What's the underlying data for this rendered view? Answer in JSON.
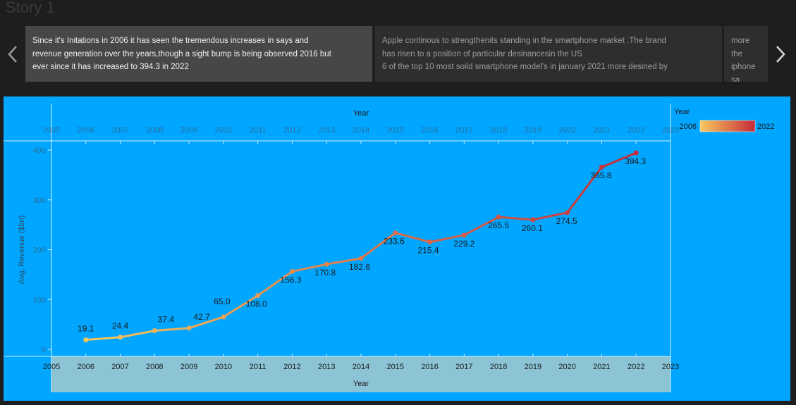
{
  "story": {
    "title": "Story 1"
  },
  "captions": [
    {
      "text": "Since it's Initations in 2006 it has seen the tremendous  increases in says and\nrevenue generation over the years,though a sight bump is being observed 2016 but\never since it has increased to 394.3 in 2022"
    },
    {
      "text": "Apple continous to strengthenits standing in the smartphone market .The brand\nhas risen to a position of particular desinancesin the US\n6 of the top 10 most soild smartphone model's in january 2021 more desined  by"
    },
    {
      "text": "more the\niphone sa\nbut declin"
    }
  ],
  "nav": {
    "prev_icon": "chevron-left-icon",
    "next_icon": "chevron-right-icon"
  },
  "legend": {
    "title": "Year",
    "min_label": "2006",
    "max_label": "2022"
  },
  "colors": {
    "background": "#1e1e1e",
    "plot_bg": "#00a6ff",
    "axis_band": "#8cc4d6",
    "color_start": "#f7c95f",
    "color_end": "#c52b3a"
  },
  "chart_data": {
    "type": "line",
    "x": [
      2006,
      2007,
      2008,
      2009,
      2010,
      2011,
      2012,
      2013,
      2014,
      2015,
      2016,
      2017,
      2018,
      2019,
      2020,
      2021,
      2022
    ],
    "values": [
      19.1,
      24.4,
      37.4,
      42.7,
      65.0,
      108.0,
      156.3,
      170.8,
      182.6,
      233.6,
      215.4,
      229.2,
      265.5,
      260.1,
      274.5,
      365.8,
      394.3
    ],
    "labels": [
      "19.1",
      "24.4",
      "37.4",
      "42.7",
      "65.0",
      "108.0",
      "156.3",
      "170.8",
      "182.6",
      "233.6",
      "215.4",
      "229.2",
      "265.5",
      "260.1",
      "274.5",
      "365.8",
      "394.3"
    ],
    "xlabel": "Year",
    "ylabel": "Avg. Revenue ($bn)",
    "xlim": [
      2005,
      2023
    ],
    "ylim": [
      0,
      400
    ],
    "xticks": [
      "2005",
      "2006",
      "2007",
      "2008",
      "2009",
      "2010",
      "2011",
      "2012",
      "2013",
      "2014",
      "2015",
      "2016",
      "2017",
      "2018",
      "2019",
      "2020",
      "2021",
      "2022",
      "2023"
    ],
    "yticks": [
      "0",
      "100",
      "200",
      "300",
      "400"
    ],
    "grid": false,
    "legend_position": "right"
  }
}
